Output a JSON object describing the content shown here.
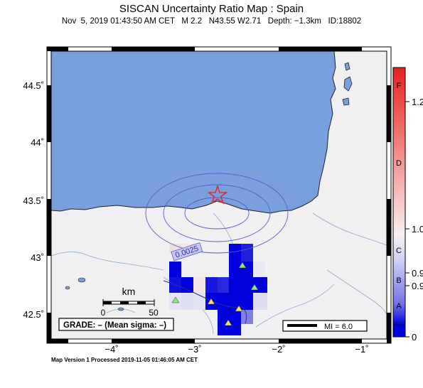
{
  "map": {
    "title": "SISCAN Uncertainty Ratio Map : Spain",
    "subtitle": "Nov  5, 2019 01:43:50 AM CET   M 2.2   N43.55 W2.71   Depth: −1.3km   ID:18802",
    "lat_labels": [
      "44.5˚",
      "44˚",
      "43.5˚",
      "43˚",
      "42.5˚"
    ],
    "lon_labels": [
      "−4˚",
      "−3˚",
      "−2˚",
      "−1˚"
    ],
    "contour_label": "0.0025",
    "scale_unit": "km",
    "scale_min": "0",
    "scale_max": "50",
    "grade_text": "GRADE: – (Mean sigma: –)",
    "mi_text": "MI = 6.0",
    "footer": "Map Version 1 Processed 2019-11-05 01:46:05 AM CET",
    "colors": {
      "sea": "#7a9fdd",
      "land": "#f0f0f0",
      "cell_dark": "#0000dd",
      "epicenter": "#e82020"
    },
    "icons": [
      "epicenter-star-icon",
      "station-triangle-icon"
    ]
  },
  "colorbar": {
    "letters": [
      "F",
      "D",
      "C",
      "B",
      "A"
    ],
    "values": [
      "1.2",
      "1.0",
      "0.9",
      "0.9",
      "0"
    ]
  }
}
